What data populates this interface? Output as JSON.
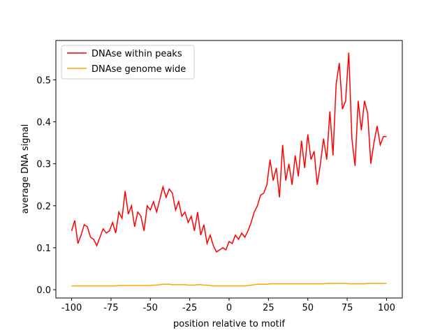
{
  "chart_data": {
    "type": "line",
    "xlabel": "position relative to motif",
    "ylabel": "average DNA signal",
    "x": [
      -100,
      -98,
      -96,
      -94,
      -92,
      -90,
      -88,
      -86,
      -84,
      -82,
      -80,
      -78,
      -76,
      -74,
      -72,
      -70,
      -68,
      -66,
      -64,
      -62,
      -60,
      -58,
      -56,
      -54,
      -52,
      -50,
      -48,
      -46,
      -44,
      -42,
      -40,
      -38,
      -36,
      -34,
      -32,
      -30,
      -28,
      -26,
      -24,
      -22,
      -20,
      -18,
      -16,
      -14,
      -12,
      -10,
      -8,
      -6,
      -4,
      -2,
      0,
      2,
      4,
      6,
      8,
      10,
      12,
      14,
      16,
      18,
      20,
      22,
      24,
      26,
      28,
      30,
      32,
      34,
      36,
      38,
      40,
      42,
      44,
      46,
      48,
      50,
      52,
      54,
      56,
      58,
      60,
      62,
      64,
      66,
      68,
      70,
      72,
      74,
      76,
      78,
      80,
      82,
      84,
      86,
      88,
      90,
      92,
      94,
      96,
      98,
      100
    ],
    "series": [
      {
        "name": "DNAse within peaks",
        "color": "#ff0000",
        "values": [
          0.14,
          0.165,
          0.11,
          0.13,
          0.155,
          0.15,
          0.125,
          0.12,
          0.105,
          0.125,
          0.145,
          0.135,
          0.14,
          0.16,
          0.135,
          0.185,
          0.17,
          0.235,
          0.18,
          0.2,
          0.15,
          0.185,
          0.175,
          0.14,
          0.2,
          0.19,
          0.21,
          0.185,
          0.215,
          0.245,
          0.22,
          0.24,
          0.23,
          0.19,
          0.21,
          0.175,
          0.185,
          0.16,
          0.175,
          0.14,
          0.185,
          0.13,
          0.155,
          0.11,
          0.13,
          0.105,
          0.09,
          0.095,
          0.1,
          0.095,
          0.115,
          0.11,
          0.13,
          0.12,
          0.135,
          0.125,
          0.14,
          0.16,
          0.185,
          0.2,
          0.225,
          0.23,
          0.25,
          0.31,
          0.26,
          0.29,
          0.22,
          0.345,
          0.26,
          0.3,
          0.25,
          0.32,
          0.27,
          0.355,
          0.29,
          0.37,
          0.31,
          0.33,
          0.25,
          0.3,
          0.36,
          0.31,
          0.425,
          0.32,
          0.49,
          0.54,
          0.43,
          0.45,
          0.565,
          0.36,
          0.295,
          0.45,
          0.38,
          0.45,
          0.42,
          0.3,
          0.35,
          0.39,
          0.345,
          0.365,
          0.365
        ]
      },
      {
        "name": "DNAse genome wide",
        "color": "#ffa500",
        "values": [
          0.009,
          0.009,
          0.009,
          0.009,
          0.009,
          0.009,
          0.009,
          0.009,
          0.009,
          0.009,
          0.009,
          0.009,
          0.009,
          0.009,
          0.009,
          0.01,
          0.01,
          0.01,
          0.01,
          0.01,
          0.01,
          0.01,
          0.01,
          0.01,
          0.01,
          0.01,
          0.011,
          0.011,
          0.012,
          0.013,
          0.013,
          0.013,
          0.012,
          0.012,
          0.012,
          0.012,
          0.012,
          0.011,
          0.011,
          0.011,
          0.012,
          0.012,
          0.011,
          0.011,
          0.01,
          0.009,
          0.009,
          0.009,
          0.009,
          0.009,
          0.009,
          0.009,
          0.009,
          0.009,
          0.009,
          0.009,
          0.01,
          0.011,
          0.012,
          0.013,
          0.013,
          0.013,
          0.013,
          0.014,
          0.014,
          0.014,
          0.014,
          0.014,
          0.014,
          0.014,
          0.014,
          0.014,
          0.014,
          0.014,
          0.014,
          0.014,
          0.014,
          0.014,
          0.014,
          0.014,
          0.014,
          0.015,
          0.015,
          0.015,
          0.015,
          0.015,
          0.015,
          0.015,
          0.014,
          0.014,
          0.014,
          0.014,
          0.014,
          0.014,
          0.015,
          0.015,
          0.015,
          0.015,
          0.015,
          0.015,
          0.015
        ]
      }
    ],
    "xlim": [
      -110,
      110
    ],
    "ylim": [
      -0.0198,
      0.5938
    ],
    "xticks": [
      -100,
      -75,
      -50,
      -25,
      0,
      25,
      50,
      75,
      100
    ],
    "yticks": [
      {
        "value": 0,
        "label": "0.0"
      },
      0.1,
      0.2,
      0.3,
      0.4,
      0.5
    ],
    "legend": "upper-left"
  }
}
